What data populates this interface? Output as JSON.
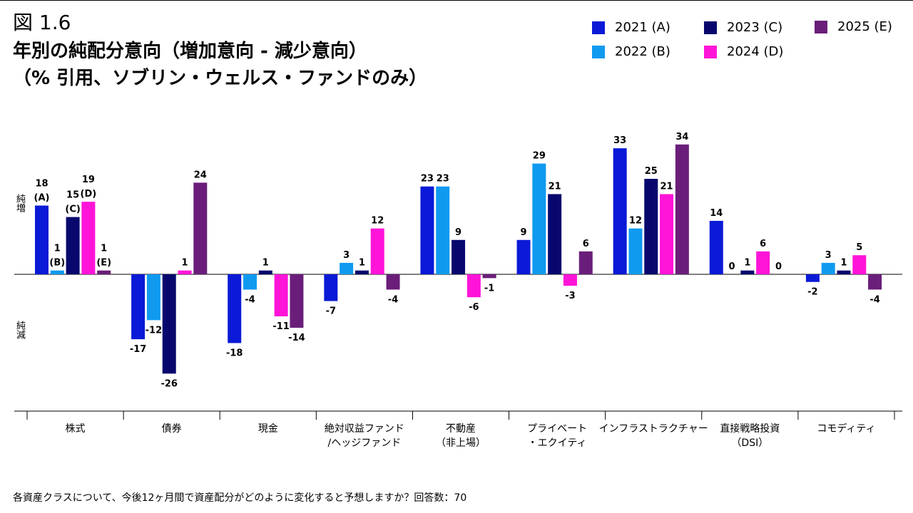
{
  "figure_label": "図 1.6",
  "title_line1": "年別の純配分意向（増加意向 - 減少意向）",
  "title_line2": "（% 引用、ソブリン・ウェルス・ファンドのみ）",
  "axis_positive_label": "純増",
  "axis_negative_label": "純減",
  "footnote": "各資産クラスについて、今後12ヶ月間で資産配分がどのように変化すると予想しますか？回答数：70",
  "colors": {
    "s2021": "#0a1ad6",
    "s2022": "#0f9af0",
    "s2023": "#07076e",
    "s2024": "#ff14d8",
    "s2025": "#6a1e7a"
  },
  "chart_data": {
    "type": "bar",
    "title": "年別の純配分意向（増加意向 - 減少意向）",
    "ylabel": "",
    "ylim": [
      -30,
      36
    ],
    "categories": [
      [
        "株式"
      ],
      [
        "債券"
      ],
      [
        "現金"
      ],
      [
        "絶対収益ファンド",
        "/ヘッジファンド"
      ],
      [
        "不動産",
        "（非上場）"
      ],
      [
        "プライベート",
        "・エクイティ"
      ],
      [
        "インフラストラクチャー"
      ],
      [
        "直接戦略投資",
        "（DSI）"
      ],
      [
        "コモディティ"
      ]
    ],
    "series": [
      {
        "name": "2021 (A)",
        "color_key": "s2021",
        "marker": "(A)",
        "values": [
          18,
          -17,
          -18,
          -7,
          23,
          9,
          33,
          14,
          -2
        ]
      },
      {
        "name": "2022 (B)",
        "color_key": "s2022",
        "marker": "(B)",
        "values": [
          1,
          -12,
          -4,
          3,
          23,
          29,
          12,
          0,
          3
        ]
      },
      {
        "name": "2023 (C)",
        "color_key": "s2023",
        "marker": "(C)",
        "values": [
          15,
          -26,
          1,
          1,
          9,
          21,
          25,
          1,
          1
        ]
      },
      {
        "name": "2024 (D)",
        "color_key": "s2024",
        "marker": "(D)",
        "values": [
          19,
          1,
          -11,
          12,
          -6,
          -3,
          21,
          6,
          5
        ]
      },
      {
        "name": "2025 (E)",
        "color_key": "s2025",
        "marker": "(E)",
        "values": [
          1,
          24,
          -14,
          -4,
          -1,
          6,
          34,
          0,
          -4
        ]
      }
    ],
    "annotated_category": 0
  }
}
